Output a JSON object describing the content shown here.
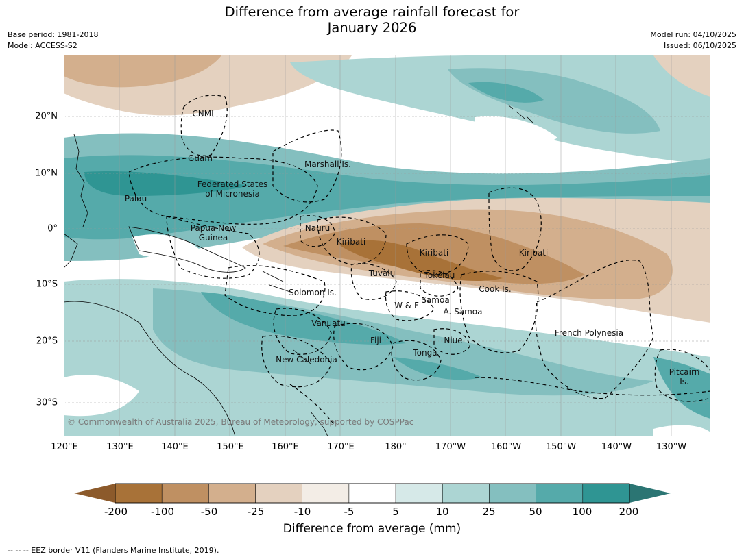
{
  "title": {
    "line1": "Difference from average rainfall forecast for",
    "line2": "January 2026"
  },
  "meta": {
    "base_period": "Base period: 1981-2018",
    "model": "Model: ACCESS-S2",
    "model_run": "Model run: 04/10/2025",
    "issued": "Issued: 06/10/2025"
  },
  "axes": {
    "lat_labels": [
      "20°N",
      "10°N",
      "0°",
      "10°S",
      "20°S",
      "30°S"
    ],
    "lon_labels": [
      "120°E",
      "130°E",
      "140°E",
      "150°E",
      "160°E",
      "170°E",
      "180°",
      "170°W",
      "160°W",
      "150°W",
      "140°W",
      "130°W"
    ]
  },
  "places": {
    "cnmi": "CNMI",
    "guam": "Guam",
    "marshall": "Marshall Is.",
    "fsm_1": "Federated States",
    "fsm_2": "of Micronesia",
    "palau": "Palau",
    "png_1": "Papua New",
    "png_2": "Guinea",
    "nauru": "Nauru",
    "kiribati_w": "Kiribati",
    "kiribati_c": "Kiribati",
    "kiribati_e": "Kiribati",
    "tuvalu": "Tuvalu",
    "tokelau": "Tokelau",
    "cook": "Cook Is.",
    "solomon": "Solomon Is.",
    "wf": "W & F",
    "samoa": "Samoa",
    "asamoa": "A. Samoa",
    "vanuatu": "Vanuatu",
    "fiji": "Fiji",
    "niue": "Niue",
    "tonga": "Tonga",
    "french_polynesia": "French Polynesia",
    "new_caledonia": "New Caledonia",
    "pitcairn_1": "Pitcairn",
    "pitcairn_2": "Is."
  },
  "copyright": "© Commonwealth of Australia 2025, Bureau of Meteorology, supported by COSPPac",
  "colorbar": {
    "title": "Difference from average (mm)",
    "labels": [
      "-200",
      "-100",
      "-50",
      "-25",
      "-10",
      "-5",
      "5",
      "10",
      "25",
      "50",
      "100",
      "200"
    ],
    "colors": [
      "#a87238",
      "#bf9062",
      "#d3af8d",
      "#e4d1bf",
      "#f3ede6",
      "#ffffff",
      "#d6e9e8",
      "#acd5d3",
      "#84bfbf",
      "#55aaaa",
      "#2f9593"
    ],
    "extend_low": "#8c5a2b",
    "extend_high": "#2b7573"
  },
  "footnote": "--  --  -- EEZ border V11 (Flanders Marine Institute, 2019)."
}
